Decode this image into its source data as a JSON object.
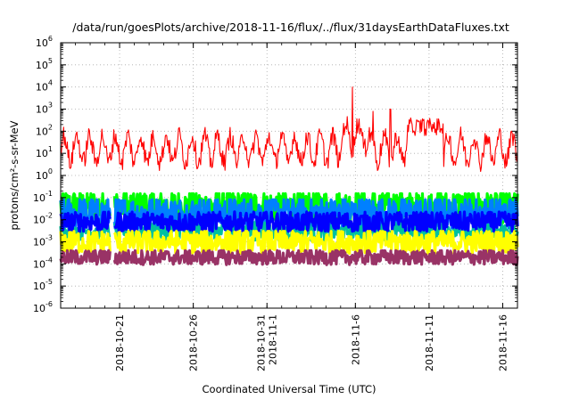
{
  "chart_data": {
    "type": "line",
    "title": "/data/run/goesPlots/archive/2018-11-16/flux/../flux/31daysEarthDataFluxes.txt",
    "xlabel": "Coordinated Universal Time (UTC)",
    "ylabel": "protons/cm²-s-sr-MeV",
    "yscale": "log",
    "ylim": [
      1e-06,
      1000000.0
    ],
    "xlim": [
      "2018-10-17T00:00",
      "2018-11-17T00:00"
    ],
    "grid": true,
    "legend": "none",
    "x_ticks": [
      {
        "date": "2018-10-21",
        "lines": [
          "2018-10-21"
        ]
      },
      {
        "date": "2018-10-26",
        "lines": [
          "2018-10-26"
        ]
      },
      {
        "date": "2018-10-31",
        "lines": [
          "2018-10-31",
          "2018-11-1"
        ]
      },
      {
        "date": "2018-11-06",
        "lines": [
          "2018-11-6"
        ]
      },
      {
        "date": "2018-11-11",
        "lines": [
          "2018-11-11"
        ]
      },
      {
        "date": "2018-11-16",
        "lines": [
          "2018-11-16"
        ]
      }
    ],
    "y_ticks": [
      {
        "value": 1e-06,
        "base": "10",
        "exp": "-6"
      },
      {
        "value": 1e-05,
        "base": "10",
        "exp": "-5"
      },
      {
        "value": 0.0001,
        "base": "10",
        "exp": "-4"
      },
      {
        "value": 0.001,
        "base": "10",
        "exp": "-3"
      },
      {
        "value": 0.01,
        "base": "10",
        "exp": "-2"
      },
      {
        "value": 0.1,
        "base": "10",
        "exp": "-1"
      },
      {
        "value": 1,
        "base": "10",
        "exp": "0"
      },
      {
        "value": 10,
        "base": "10",
        "exp": "1"
      },
      {
        "value": 100,
        "base": "10",
        "exp": "2"
      },
      {
        "value": 1000,
        "base": "10",
        "exp": "3"
      },
      {
        "value": 10000,
        "base": "10",
        "exp": "4"
      },
      {
        "value": 100000,
        "base": "10",
        "exp": "5"
      },
      {
        "value": 1000000,
        "base": "10",
        "exp": "6"
      }
    ],
    "series": [
      {
        "color": "#ff0000",
        "approx_range": [
          0.6,
          10000
        ],
        "typical": 20
      },
      {
        "color": "#00ff00",
        "approx_range": [
          0.003,
          0.15
        ],
        "typical": 0.04
      },
      {
        "color": "#0080ff",
        "approx_range": [
          0.002,
          0.08
        ],
        "typical": 0.02
      },
      {
        "color": "#0000ff",
        "approx_range": [
          0.003,
          0.03
        ],
        "typical": 0.008
      },
      {
        "color": "#00c0a0",
        "approx_range": [
          0.001,
          0.008
        ],
        "typical": 0.003
      },
      {
        "color": "#ffff00",
        "approx_range": [
          0.0002,
          0.003
        ],
        "typical": 0.001
      },
      {
        "color": "#993366",
        "approx_range": [
          7e-05,
          0.0004
        ],
        "typical": 0.0002
      }
    ],
    "data_gap": "2018-10-20"
  }
}
